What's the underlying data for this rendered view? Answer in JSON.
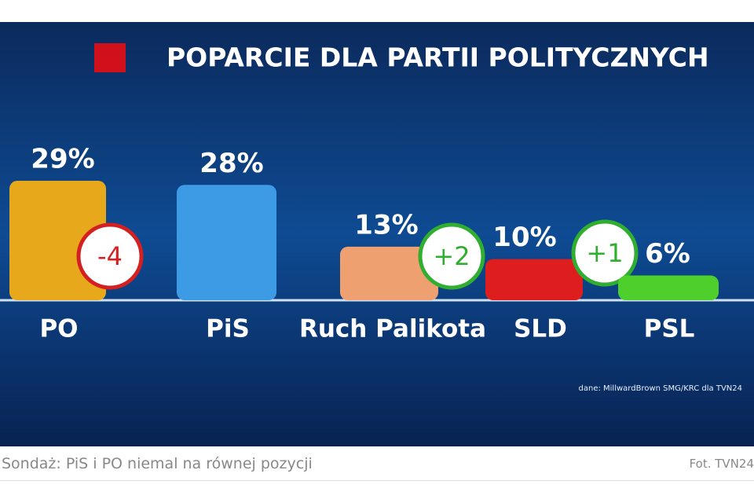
{
  "chart_data": {
    "type": "bar",
    "title": "POPARCIE DLA PARTII POLITYCZNYCH",
    "categories": [
      "PO",
      "PiS",
      "Ruch Palikota",
      "SLD",
      "PSL"
    ],
    "values": [
      29,
      28,
      13,
      10,
      6
    ],
    "value_labels": [
      "29%",
      "28%",
      "13%",
      "10%",
      "6%"
    ],
    "colors": [
      "#e8a81c",
      "#3d9be6",
      "#eea070",
      "#de1e1e",
      "#4fcf2c"
    ],
    "changes": [
      -4,
      null,
      2,
      1,
      null
    ],
    "change_labels": [
      "-4",
      null,
      "+2",
      "+1",
      null
    ],
    "change_colors": [
      "#d42020",
      null,
      "#2fae2f",
      "#2fae2f",
      null
    ],
    "source": "dane: MillwardBrown SMG/KRC dla TVN24"
  },
  "caption": "Sondaż: PiS i PO niemal na równej pozycji",
  "credit": "Fot. TVN24"
}
